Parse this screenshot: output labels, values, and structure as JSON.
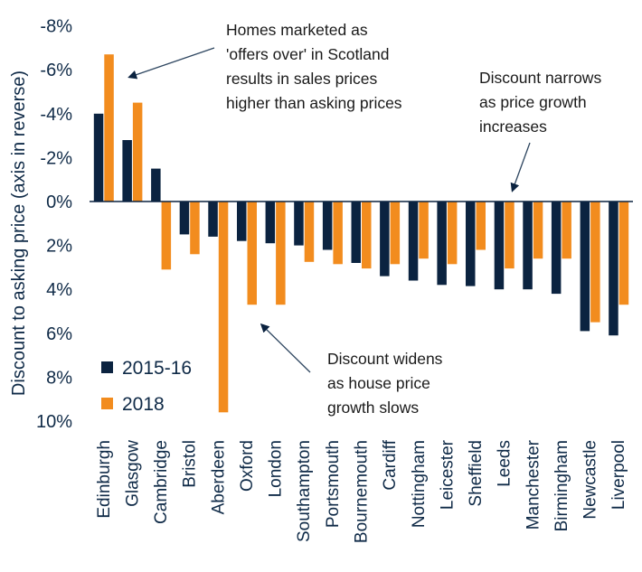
{
  "chart_data": {
    "type": "bar",
    "title": "",
    "xlabel": "",
    "ylabel": "Discount to asking price (axis in reverse)",
    "y_axis_reversed": true,
    "ylim": [
      -8,
      10
    ],
    "yticks": [
      -8,
      -6,
      -4,
      -2,
      0,
      2,
      4,
      6,
      8,
      10
    ],
    "ytick_labels": [
      "-8%",
      "-6%",
      "-4%",
      "-2%",
      "0%",
      "2%",
      "4%",
      "6%",
      "8%",
      "10%"
    ],
    "grid": false,
    "legend_position": "bottom-left",
    "categories": [
      "Edinburgh",
      "Glasgow",
      "Cambridge",
      "Bristol",
      "Aberdeen",
      "Oxford",
      "London",
      "Southampton",
      "Portsmouth",
      "Bournemouth",
      "Cardiff",
      "Nottingham",
      "Leicester",
      "Sheffield",
      "Leeds",
      "Manchester",
      "Birmingham",
      "Newcastle",
      "Liverpool"
    ],
    "series": [
      {
        "name": "2015-16",
        "color": "#0b2340",
        "values": [
          -4.0,
          -2.8,
          -1.5,
          1.5,
          1.6,
          1.8,
          1.9,
          2.0,
          2.2,
          2.8,
          3.4,
          3.6,
          3.8,
          3.85,
          4.0,
          4.0,
          4.2,
          5.9,
          6.1
        ]
      },
      {
        "name": "2018",
        "color": "#f28c1e",
        "values": [
          -6.7,
          -4.5,
          3.1,
          2.4,
          9.6,
          4.7,
          4.7,
          2.75,
          2.85,
          3.05,
          2.85,
          2.6,
          2.85,
          2.2,
          3.05,
          2.6,
          2.6,
          5.5,
          4.7
        ]
      }
    ],
    "annotations": [
      {
        "id": "scotland",
        "lines": [
          "Homes marketed as",
          "'offers over' in Scotland",
          "results in sales prices",
          "higher than asking prices"
        ],
        "points_to": "Glasgow"
      },
      {
        "id": "narrows",
        "lines": [
          "Discount narrows",
          "as price growth",
          "increases"
        ],
        "points_to": "Sheffield"
      },
      {
        "id": "widens",
        "lines": [
          "Discount widens",
          "as house price",
          "growth slows"
        ],
        "points_to": "Oxford"
      }
    ]
  },
  "colors": {
    "text": "#0f2a47",
    "axis": "#0b2340",
    "arrow": "#2e4660"
  }
}
